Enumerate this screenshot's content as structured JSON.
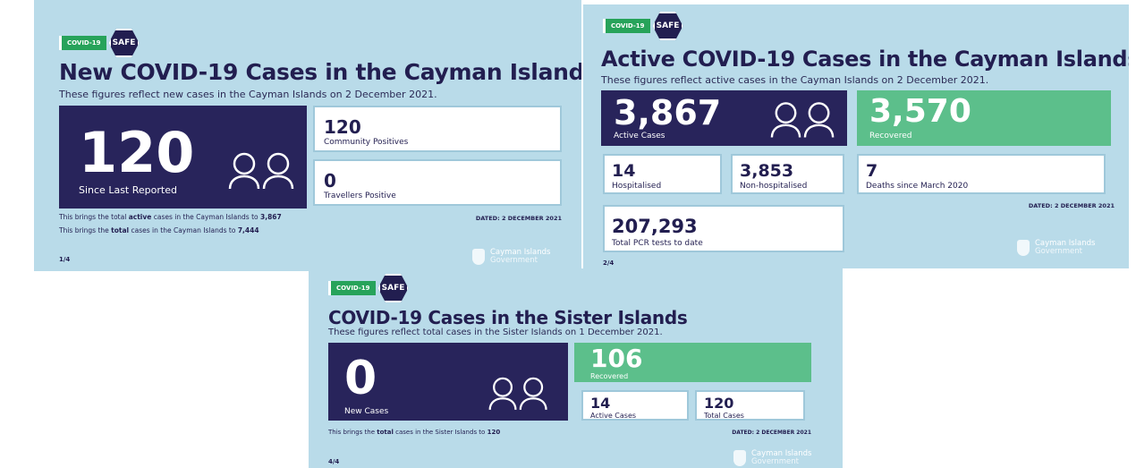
{
  "panels": [
    {
      "badge": "COVID-19",
      "safe": "SAFE",
      "title": "New COVID-19 Cases in the Cayman Islands",
      "subtitle": "These figures reflect new cases in the Cayman Islands on 2 December 2021.",
      "main": {
        "value": "120",
        "label": "Since Last Reported"
      },
      "boxes": [
        {
          "value": "120",
          "label": "Community Positives"
        },
        {
          "value": "0",
          "label": "Travellers Positive"
        }
      ],
      "notes": [
        {
          "before": "This brings the total",
          "emphasis": "active",
          "after": "cases in the Cayman Islands to",
          "value": "3,867"
        },
        {
          "before": "This brings the",
          "emphasis": "total",
          "after": "cases in the Cayman Islands to",
          "value": "7,444"
        }
      ],
      "dated": "DATED: 2 DECEMBER 2021",
      "page": "1/4",
      "government": [
        "Cayman Islands",
        "Government"
      ]
    },
    {
      "badge": "COVID-19",
      "safe": "SAFE",
      "title": "Active COVID-19 Cases in the Cayman Islands",
      "subtitle": "These figures reflect active cases in the Cayman Islands on 2 December 2021.",
      "main": {
        "value": "3,867",
        "label": "Active Cases"
      },
      "recovered": {
        "value": "3,570",
        "label": "Recovered"
      },
      "boxes": [
        {
          "value": "14",
          "label": "Hospitalised"
        },
        {
          "value": "3,853",
          "label": "Non-hospitalised"
        },
        {
          "value": "7",
          "label": "Deaths since March 2020"
        },
        {
          "value": "207,293",
          "label": "Total PCR tests to date"
        }
      ],
      "dated": "DATED: 2 DECEMBER 2021",
      "page": "2/4",
      "government": [
        "Cayman Islands",
        "Government"
      ]
    },
    {
      "badge": "COVID-19",
      "safe": "SAFE",
      "title": "COVID-19 Cases in the Sister Islands",
      "subtitle": "These figures reflect total cases in the Sister Islands on 1 December 2021.",
      "main": {
        "value": "0",
        "label": "New Cases"
      },
      "recovered": {
        "value": "106",
        "label": "Recovered"
      },
      "boxes": [
        {
          "value": "14",
          "label": "Active Cases"
        },
        {
          "value": "120",
          "label": "Total Cases"
        }
      ],
      "notes": [
        {
          "before": "This brings the",
          "emphasis": "total",
          "after": "cases in the Sister Islands to",
          "value": "120"
        }
      ],
      "dated": "DATED: 2 DECEMBER 2021",
      "page": "4/4",
      "government": [
        "Cayman Islands",
        "Government"
      ]
    }
  ]
}
